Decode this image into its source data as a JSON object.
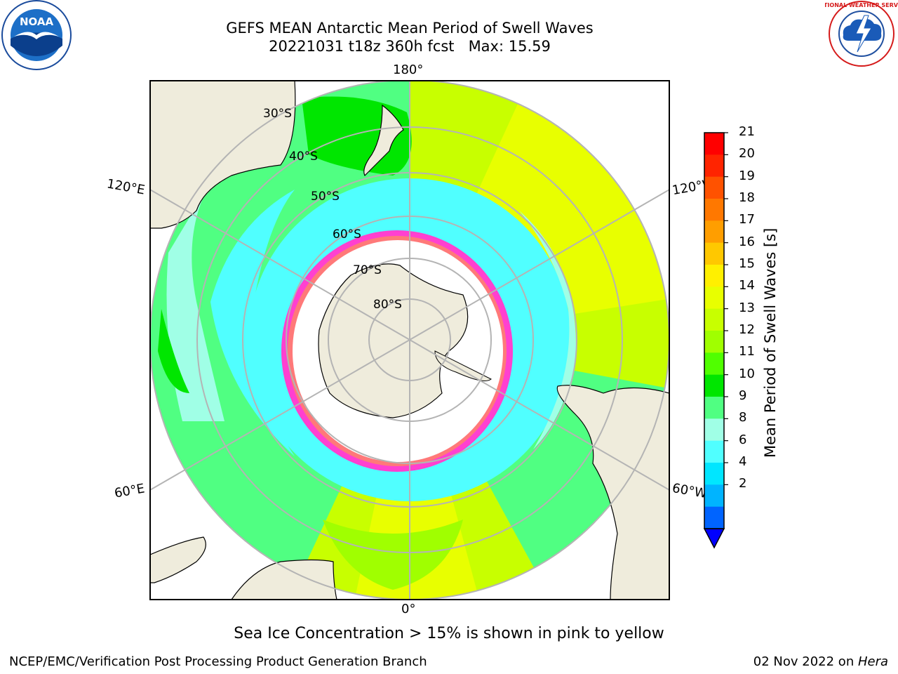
{
  "header": {
    "title_line1": "GEFS MEAN Antarctic Mean Period of Swell Waves",
    "title_line2": "20221031 t18z 360h fcst   Max: 15.59"
  },
  "logos": {
    "noaa_text": "NOAA",
    "nws_text": "NATIONAL WEATHER SERVICE"
  },
  "map": {
    "projection": "south-polar-stereographic",
    "land_color": "#efecdc",
    "ice_color": "#ffffff",
    "longitude_labels": {
      "top": "180°",
      "bottom": "0°",
      "left_upper": "120°E",
      "left_lower": "60°E",
      "right_upper": "120°W",
      "right_lower": "60°W"
    },
    "latitude_labels": [
      "30°S",
      "40°S",
      "50°S",
      "60°S",
      "70°S",
      "80°S"
    ]
  },
  "colorbar": {
    "title": "Mean Period of Swell Waves [s]",
    "ticks": [
      "21",
      "20",
      "19",
      "18",
      "17",
      "16",
      "15",
      "14",
      "13",
      "12",
      "11",
      "10",
      "9",
      "8",
      "6",
      "4",
      "2"
    ],
    "levels": [
      {
        "color": "#ff0000"
      },
      {
        "color": "#ff2400"
      },
      {
        "color": "#ff5200"
      },
      {
        "color": "#ff7800"
      },
      {
        "color": "#ff9e00"
      },
      {
        "color": "#ffc800"
      },
      {
        "color": "#fff000"
      },
      {
        "color": "#e8ff00"
      },
      {
        "color": "#c8ff00"
      },
      {
        "color": "#a0ff00"
      },
      {
        "color": "#50ff00"
      },
      {
        "color": "#00e600"
      },
      {
        "color": "#50ff82"
      },
      {
        "color": "#a0ffe6"
      },
      {
        "color": "#50ffff"
      },
      {
        "color": "#00e6ff"
      },
      {
        "color": "#00b4ff"
      },
      {
        "color": "#0064ff"
      }
    ],
    "extend_color": "#0000ff"
  },
  "caption": "Sea Ice Concentration > 15% is shown in pink to yellow",
  "footer": {
    "left": "NCEP/EMC/Verification Post Processing Product Generation Branch",
    "right_date": "02 Nov 2022 on ",
    "right_host": "Hera"
  }
}
